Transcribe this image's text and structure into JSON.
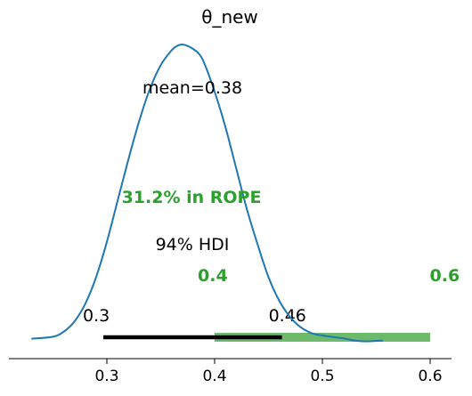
{
  "chart_data": {
    "type": "line",
    "title": "θ_new",
    "xlabel": "",
    "ylabel": "",
    "xlim": [
      0.22,
      0.62
    ],
    "x_ticks": [
      {
        "value": 0.3,
        "label": "0.3"
      },
      {
        "value": 0.4,
        "label": "0.4"
      },
      {
        "value": 0.5,
        "label": "0.5"
      },
      {
        "value": 0.6,
        "label": "0.6"
      }
    ],
    "grid": false,
    "density": {
      "color": "#1f77b4",
      "x": [
        0.23,
        0.25,
        0.26,
        0.27,
        0.28,
        0.29,
        0.3,
        0.31,
        0.32,
        0.33,
        0.34,
        0.35,
        0.36,
        0.365,
        0.37,
        0.375,
        0.38,
        0.385,
        0.39,
        0.4,
        0.41,
        0.42,
        0.43,
        0.44,
        0.45,
        0.46,
        0.47,
        0.48,
        0.49,
        0.5,
        0.51,
        0.52,
        0.53,
        0.54,
        0.556
      ],
      "y": [
        0.001,
        0.008,
        0.025,
        0.06,
        0.12,
        0.21,
        0.33,
        0.47,
        0.61,
        0.74,
        0.85,
        0.93,
        0.98,
        0.995,
        1.0,
        0.995,
        0.985,
        0.97,
        0.94,
        0.84,
        0.72,
        0.58,
        0.44,
        0.32,
        0.21,
        0.13,
        0.075,
        0.04,
        0.02,
        0.012,
        0.007,
        0.002,
        -0.005,
        -0.008,
        -0.005
      ]
    },
    "mean": {
      "value": 0.38,
      "label": "mean=0.38"
    },
    "hdi": {
      "label": "94% HDI",
      "low": 0.3,
      "high": 0.46,
      "low_label": "0.3",
      "high_label": "0.46",
      "color": "#000000"
    },
    "rope": {
      "label": "31.2% in ROPE",
      "low": 0.4,
      "high": 0.6,
      "low_label": "0.4",
      "high_label": "0.6",
      "color": "#2ca02c",
      "bar_color": "#6dbb6a"
    }
  }
}
